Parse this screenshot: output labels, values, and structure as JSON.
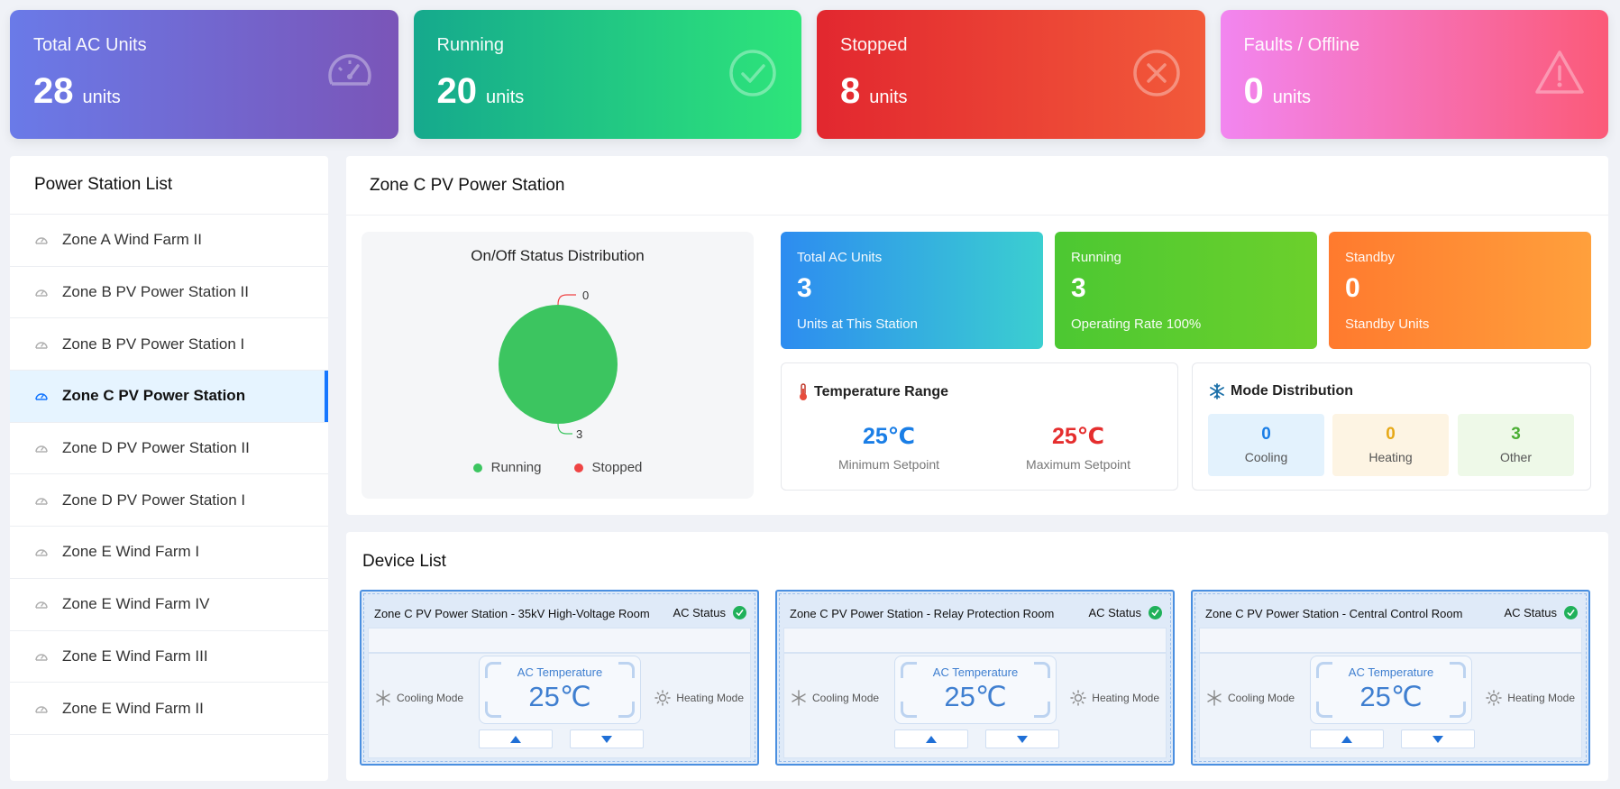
{
  "kpis": [
    {
      "title": "Total AC Units",
      "value": "28",
      "unit": "units",
      "icon": "gauge-icon"
    },
    {
      "title": "Running",
      "value": "20",
      "unit": "units",
      "icon": "check-circle-icon"
    },
    {
      "title": "Stopped",
      "value": "8",
      "unit": "units",
      "icon": "x-circle-icon"
    },
    {
      "title": "Faults / Offline",
      "value": "0",
      "unit": "units",
      "icon": "warning-icon"
    }
  ],
  "sidebar": {
    "title": "Power Station List",
    "items": [
      {
        "label": "Zone A Wind Farm II"
      },
      {
        "label": "Zone B PV Power Station II"
      },
      {
        "label": "Zone B PV Power Station I"
      },
      {
        "label": "Zone C PV Power Station"
      },
      {
        "label": "Zone D PV Power Station II"
      },
      {
        "label": "Zone D PV Power Station I"
      },
      {
        "label": "Zone E Wind Farm I"
      },
      {
        "label": "Zone E Wind Farm IV"
      },
      {
        "label": "Zone E Wind Farm III"
      },
      {
        "label": "Zone E Wind Farm II"
      }
    ],
    "active_index": 3
  },
  "station": {
    "title": "Zone C PV Power Station",
    "summary_cards": [
      {
        "title": "Total AC Units",
        "value": "3",
        "sub": "Units at This Station"
      },
      {
        "title": "Running",
        "value": "3",
        "sub": "Operating Rate 100%"
      },
      {
        "title": "Standby",
        "value": "0",
        "sub": "Standby Units"
      }
    ],
    "temperature": {
      "title": "Temperature Range",
      "min_value": "25℃",
      "min_label": "Minimum Setpoint",
      "max_value": "25℃",
      "max_label": "Maximum Setpoint"
    },
    "modes": {
      "title": "Mode Distribution",
      "items": [
        {
          "value": "0",
          "label": "Cooling"
        },
        {
          "value": "0",
          "label": "Heating"
        },
        {
          "value": "3",
          "label": "Other"
        }
      ]
    }
  },
  "chart_data": {
    "type": "pie",
    "title": "On/Off Status Distribution",
    "categories": [
      "Running",
      "Stopped"
    ],
    "values": [
      3,
      0
    ],
    "colors": [
      "#3cc560",
      "#ef4444"
    ],
    "legend": "bottom"
  },
  "devices": {
    "title": "Device List",
    "status_label": "AC Status",
    "temp_label": "AC Temperature",
    "cooling_label": "Cooling Mode",
    "heating_label": "Heating Mode",
    "items": [
      {
        "name": "Zone C PV Power Station - 35kV High-Voltage Room",
        "temperature": "25℃"
      },
      {
        "name": "Zone C PV Power Station - Relay Protection Room",
        "temperature": "25℃"
      },
      {
        "name": "Zone C PV Power Station - Central Control Room",
        "temperature": "25℃"
      }
    ]
  },
  "colors": {
    "accent": "#1677ff",
    "running": "#3cc560",
    "stopped": "#ef4444",
    "cooling_text": "#1a7ee6",
    "heating_text": "#e6a817",
    "other_text": "#4caf35",
    "max_temp": "#e52e2e",
    "min_temp": "#1a7ee6"
  }
}
